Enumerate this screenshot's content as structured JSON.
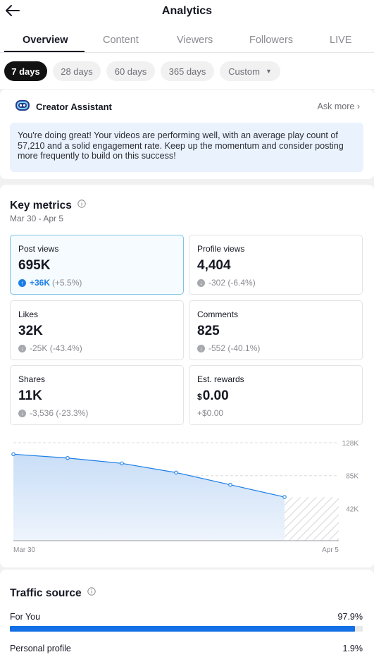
{
  "header": {
    "title": "Analytics"
  },
  "tabs": [
    {
      "label": "Overview"
    },
    {
      "label": "Content"
    },
    {
      "label": "Viewers"
    },
    {
      "label": "Followers"
    },
    {
      "label": "LIVE"
    }
  ],
  "ranges": [
    {
      "label": "7 days"
    },
    {
      "label": "28 days"
    },
    {
      "label": "60 days"
    },
    {
      "label": "365 days"
    },
    {
      "label": "Custom"
    }
  ],
  "assistant": {
    "title": "Creator Assistant",
    "ask_more": "Ask more",
    "message": "You're doing great! Your videos are performing well, with an average play count of 57,210 and a solid engagement rate. Keep up the momentum and consider posting more frequently to build on this success!"
  },
  "key_metrics": {
    "title": "Key metrics",
    "date_range": "Mar 30 - Apr 5",
    "cards": [
      {
        "label": "Post views",
        "value": "695K",
        "delta_main": "+36K",
        "delta_pct": "(+5.5%)",
        "direction": "up"
      },
      {
        "label": "Profile views",
        "value": "4,404",
        "delta_main": "-302",
        "delta_pct": "(-6.4%)",
        "direction": "down"
      },
      {
        "label": "Likes",
        "value": "32K",
        "delta_main": "-25K",
        "delta_pct": "(-43.4%)",
        "direction": "down"
      },
      {
        "label": "Comments",
        "value": "825",
        "delta_main": "-552",
        "delta_pct": "(-40.1%)",
        "direction": "down"
      },
      {
        "label": "Shares",
        "value": "11K",
        "delta_main": "-3,536",
        "delta_pct": "(-23.3%)",
        "direction": "down"
      },
      {
        "label": "Est. rewards",
        "currency": "$",
        "value": "0.00",
        "delta_main": "+$0.00",
        "delta_pct": "",
        "direction": "none"
      }
    ]
  },
  "chart_data": {
    "type": "area",
    "x": [
      "Mar 30",
      "Mar 31",
      "Apr 1",
      "Apr 2",
      "Apr 3",
      "Apr 4",
      "Apr 5"
    ],
    "xticks": [
      "Mar 30",
      "Apr 5"
    ],
    "series": [
      {
        "values": [
          113000,
          108000,
          101000,
          89000,
          73000,
          57000,
          null
        ]
      }
    ],
    "yticks": [
      "128K",
      "85K",
      "42K"
    ],
    "ytick_values": [
      128000,
      85000,
      42000
    ],
    "ylim": [
      0,
      128000
    ],
    "grid": true,
    "color": "#1b7ee6"
  },
  "traffic": {
    "title": "Traffic source",
    "items": [
      {
        "label": "For You",
        "pct_text": "97.9%",
        "pct": 97.9
      },
      {
        "label": "Personal profile",
        "pct_text": "1.9%",
        "pct": 1.9
      }
    ]
  }
}
